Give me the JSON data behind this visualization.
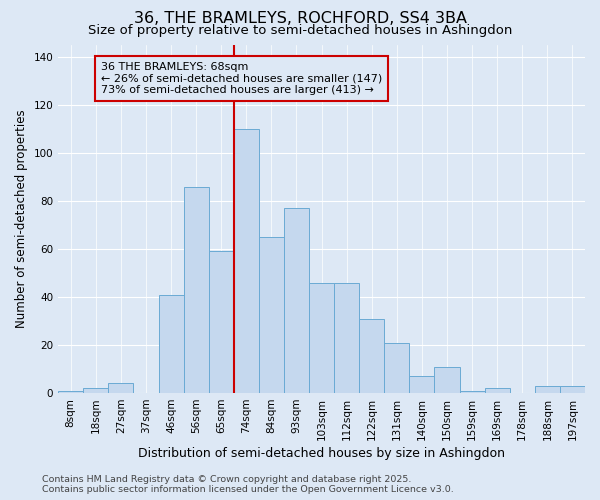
{
  "title": "36, THE BRAMLEYS, ROCHFORD, SS4 3BA",
  "subtitle": "Size of property relative to semi-detached houses in Ashingdon",
  "xlabel": "Distribution of semi-detached houses by size in Ashingdon",
  "ylabel": "Number of semi-detached properties",
  "categories": [
    "8sqm",
    "18sqm",
    "27sqm",
    "37sqm",
    "46sqm",
    "56sqm",
    "65sqm",
    "74sqm",
    "84sqm",
    "93sqm",
    "103sqm",
    "112sqm",
    "122sqm",
    "131sqm",
    "140sqm",
    "150sqm",
    "159sqm",
    "169sqm",
    "178sqm",
    "188sqm",
    "197sqm"
  ],
  "values": [
    1,
    2,
    4,
    0,
    41,
    86,
    59,
    110,
    65,
    77,
    46,
    46,
    31,
    21,
    7,
    11,
    1,
    2,
    0,
    3,
    3
  ],
  "bar_color": "#c5d8ee",
  "bar_edge_color": "#6aaad4",
  "marker_bin_index": 6.5,
  "marker_color": "#cc0000",
  "annotation_title": "36 THE BRAMLEYS: 68sqm",
  "annotation_line1": "← 26% of semi-detached houses are smaller (147)",
  "annotation_line2": "73% of semi-detached houses are larger (413) →",
  "ylim": [
    0,
    145
  ],
  "yticks": [
    0,
    20,
    40,
    60,
    80,
    100,
    120,
    140
  ],
  "footer_line1": "Contains HM Land Registry data © Crown copyright and database right 2025.",
  "footer_line2": "Contains public sector information licensed under the Open Government Licence v3.0.",
  "bg_color": "#dde8f5",
  "grid_color": "#ffffff",
  "title_fontsize": 11.5,
  "subtitle_fontsize": 9.5,
  "axis_label_fontsize": 8.5,
  "tick_fontsize": 7.5,
  "annotation_fontsize": 8,
  "footer_fontsize": 6.8
}
